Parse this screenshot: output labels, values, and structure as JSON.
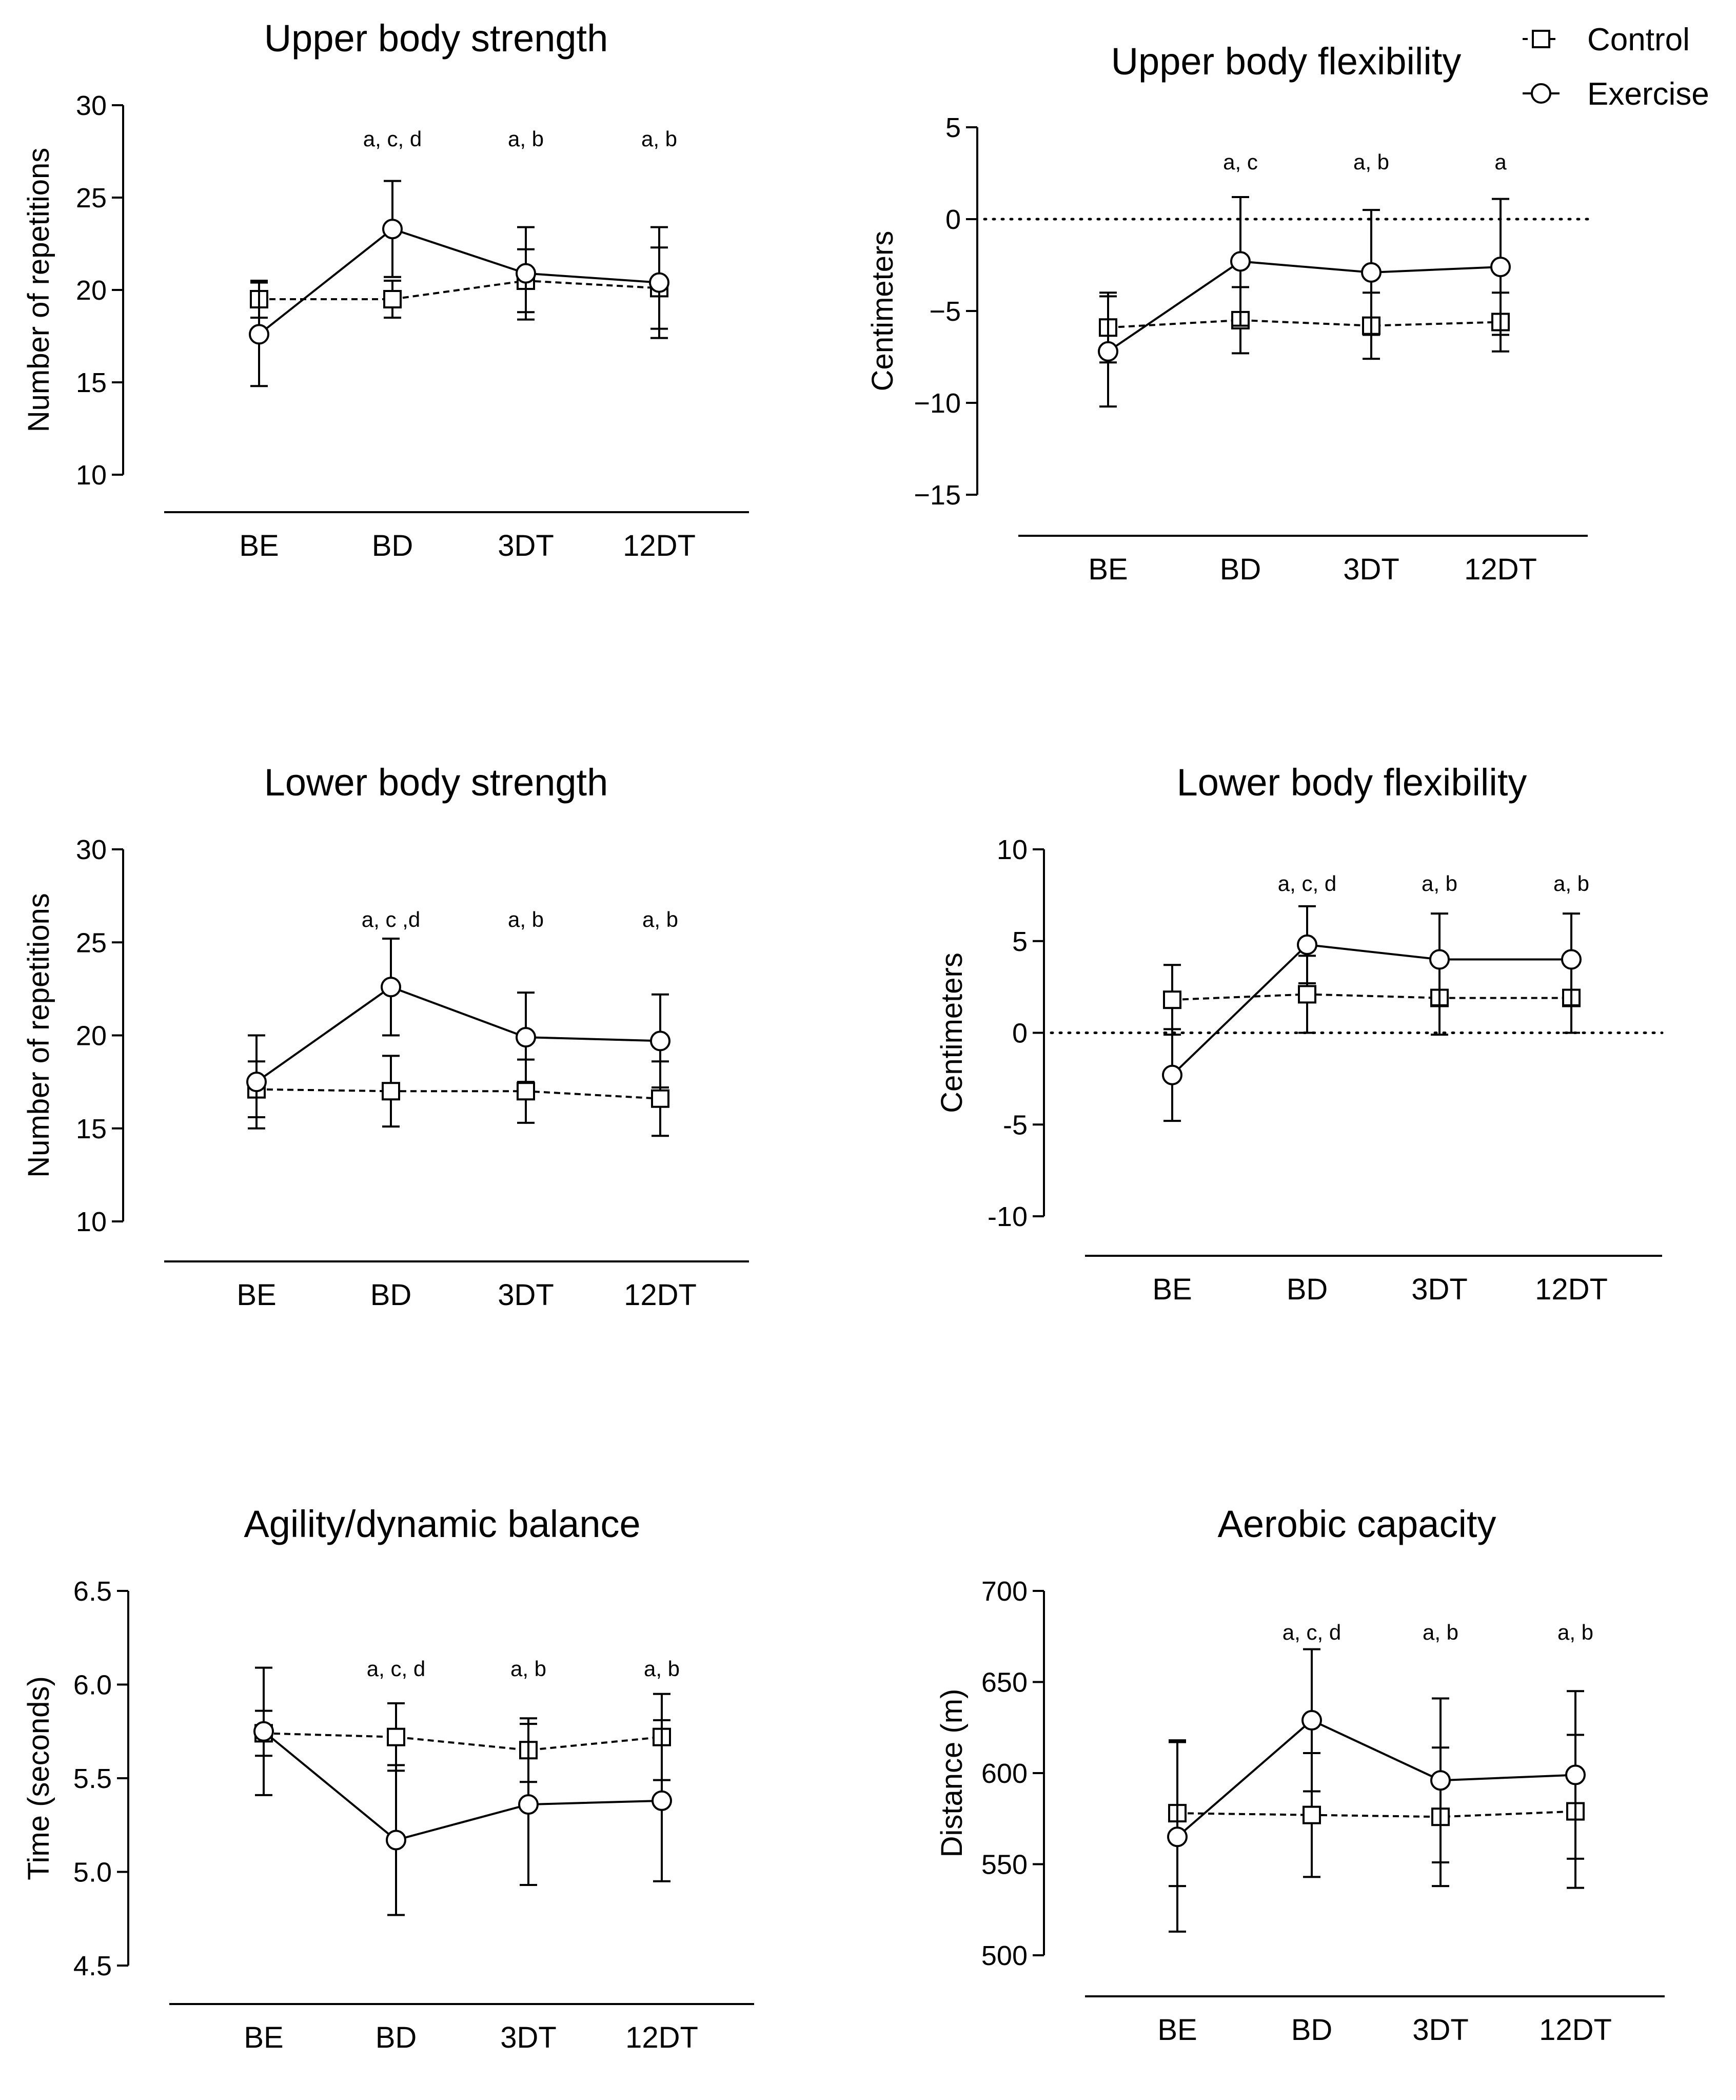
{
  "categories": [
    "BE",
    "BD",
    "3DT",
    "12DT"
  ],
  "legend": {
    "control_label": "Control",
    "exercise_label": "Exercise",
    "placement": "top-right"
  },
  "colors": {
    "line": "#000000",
    "background": "#ffffff"
  },
  "chart_data": [
    {
      "type": "line",
      "title": "Upper body strength",
      "ylabel": "Number of repetitions",
      "categories": [
        "BE",
        "BD",
        "3DT",
        "12DT"
      ],
      "ylim": [
        10,
        30
      ],
      "yticks": [
        10,
        15,
        20,
        25,
        30
      ],
      "ytick_labels": [
        "10",
        "15",
        "20",
        "25",
        "30"
      ],
      "zero_line": false,
      "series": [
        {
          "name": "Control",
          "line_style": "dashed",
          "marker": "square",
          "values": [
            19.5,
            19.5,
            20.5,
            20.1
          ],
          "errors": [
            1.0,
            1.0,
            1.7,
            2.2
          ]
        },
        {
          "name": "Exercise",
          "line_style": "solid",
          "marker": "circle",
          "values": [
            17.6,
            23.3,
            20.9,
            20.4
          ],
          "errors": [
            2.8,
            2.6,
            2.5,
            3.0
          ]
        }
      ],
      "annotations": [
        "",
        "a, c, d",
        "a, b",
        "a, b"
      ]
    },
    {
      "type": "line",
      "title": "Upper body flexibility",
      "ylabel": "Centimeters",
      "categories": [
        "BE",
        "BD",
        "3DT",
        "12DT"
      ],
      "ylim": [
        -15,
        5
      ],
      "yticks": [
        -15,
        -10,
        -5,
        0,
        5
      ],
      "ytick_labels": [
        "−15",
        "−10",
        "−5",
        "0",
        "5"
      ],
      "zero_line": true,
      "series": [
        {
          "name": "Control",
          "line_style": "dashed",
          "marker": "square",
          "values": [
            -5.9,
            -5.5,
            -5.8,
            -5.6
          ],
          "errors": [
            1.9,
            1.8,
            1.8,
            1.6
          ]
        },
        {
          "name": "Exercise",
          "line_style": "solid",
          "marker": "circle",
          "values": [
            -7.2,
            -2.3,
            -2.9,
            -2.6
          ],
          "errors": [
            3.0,
            3.5,
            3.4,
            3.7
          ]
        }
      ],
      "annotations": [
        "",
        "a, c",
        "a, b",
        "a"
      ]
    },
    {
      "type": "line",
      "title": "Lower body strength",
      "ylabel": "Number of repetitions",
      "categories": [
        "BE",
        "BD",
        "3DT",
        "12DT"
      ],
      "ylim": [
        10,
        30
      ],
      "yticks": [
        10,
        15,
        20,
        25,
        30
      ],
      "ytick_labels": [
        "10",
        "15",
        "20",
        "25",
        "30"
      ],
      "zero_line": false,
      "series": [
        {
          "name": "Control",
          "line_style": "dashed",
          "marker": "square",
          "values": [
            17.1,
            17.0,
            17.0,
            16.6
          ],
          "errors": [
            1.5,
            1.9,
            1.7,
            2.0
          ]
        },
        {
          "name": "Exercise",
          "line_style": "solid",
          "marker": "circle",
          "values": [
            17.5,
            22.6,
            19.9,
            19.7
          ],
          "errors": [
            2.5,
            2.6,
            2.4,
            2.5
          ]
        }
      ],
      "annotations": [
        "",
        "a, c ,d",
        "a, b",
        "a, b"
      ]
    },
    {
      "type": "line",
      "title": "Lower body flexibility",
      "ylabel": "Centimeters",
      "categories": [
        "BE",
        "BD",
        "3DT",
        "12DT"
      ],
      "ylim": [
        -10,
        10
      ],
      "yticks": [
        -10,
        -5,
        0,
        5,
        10
      ],
      "ytick_labels": [
        "-10",
        "-5",
        "0",
        "5",
        "10"
      ],
      "zero_line": true,
      "series": [
        {
          "name": "Control",
          "line_style": "dashed",
          "marker": "square",
          "values": [
            1.8,
            2.1,
            1.9,
            1.9
          ],
          "errors": [
            1.9,
            2.1,
            2.0,
            1.9
          ]
        },
        {
          "name": "Exercise",
          "line_style": "solid",
          "marker": "circle",
          "values": [
            -2.3,
            4.8,
            4.0,
            4.0
          ],
          "errors": [
            2.5,
            2.1,
            2.5,
            2.5
          ]
        }
      ],
      "annotations": [
        "",
        "a, c, d",
        "a, b",
        "a, b"
      ]
    },
    {
      "type": "line",
      "title": "Agility/dynamic balance",
      "ylabel": "Time (seconds)",
      "categories": [
        "BE",
        "BD",
        "3DT",
        "12DT"
      ],
      "ylim": [
        4.5,
        6.5
      ],
      "yticks": [
        4.5,
        5.0,
        5.5,
        6.0,
        6.5
      ],
      "ytick_labels": [
        "4.5",
        "5.0",
        "5.5",
        "6.0",
        "6.5"
      ],
      "zero_line": false,
      "series": [
        {
          "name": "Control",
          "line_style": "dashed",
          "marker": "square",
          "values": [
            5.74,
            5.72,
            5.65,
            5.72
          ],
          "errors": [
            0.12,
            0.18,
            0.17,
            0.23
          ]
        },
        {
          "name": "Exercise",
          "line_style": "solid",
          "marker": "circle",
          "values": [
            5.75,
            5.17,
            5.36,
            5.38
          ],
          "errors": [
            0.34,
            0.4,
            0.43,
            0.43
          ]
        }
      ],
      "annotations": [
        "",
        "a, c, d",
        "a, b",
        "a, b"
      ]
    },
    {
      "type": "line",
      "title": "Aerobic capacity",
      "ylabel": "Distance (m)",
      "categories": [
        "BE",
        "BD",
        "3DT",
        "12DT"
      ],
      "ylim": [
        500,
        700
      ],
      "yticks": [
        500,
        550,
        600,
        650,
        700
      ],
      "ytick_labels": [
        "500",
        "550",
        "600",
        "650",
        "700"
      ],
      "zero_line": false,
      "series": [
        {
          "name": "Control",
          "line_style": "dashed",
          "marker": "square",
          "values": [
            578,
            577,
            576,
            579
          ],
          "errors": [
            40,
            34,
            38,
            42
          ]
        },
        {
          "name": "Exercise",
          "line_style": "solid",
          "marker": "circle",
          "values": [
            565,
            629,
            596,
            599
          ],
          "errors": [
            52,
            39,
            45,
            46
          ]
        }
      ],
      "annotations": [
        "",
        "a, c, d",
        "a, b",
        "a, b"
      ]
    }
  ]
}
